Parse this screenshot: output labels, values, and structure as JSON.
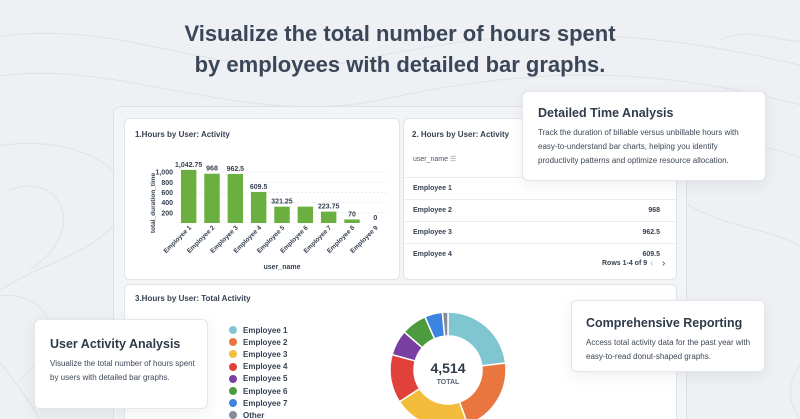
{
  "hero": {
    "line1": "Visualize the total number of hours spent",
    "line2": "by employees with detailed bar graphs."
  },
  "bar_card": {
    "title": "1.Hours by User: Activity"
  },
  "table_card": {
    "title": "2. Hours by User: Activity",
    "column_header": "user_name",
    "sort_icon": "sort-icon",
    "rows": [
      {
        "name": "Employee 1",
        "value": ""
      },
      {
        "name": "Employee 2",
        "value": "968"
      },
      {
        "name": "Employee 3",
        "value": "962.5"
      },
      {
        "name": "Employee 4",
        "value": "609.5"
      }
    ],
    "pager_text": "Rows 1-4 of 9",
    "prev_icon": "chevron-left-icon",
    "next_icon": "chevron-right-icon"
  },
  "donut_card": {
    "title": "3.Hours by User: Total Activity",
    "total_value": "4,514",
    "total_label": "TOTAL"
  },
  "callouts": {
    "detailed": {
      "title": "Detailed Time Analysis",
      "body": "Track the duration of billable versus unbillable hours with easy-to-understand bar charts, helping you identify productivity patterns and optimize resource allocation."
    },
    "user_activity": {
      "title": "User Activity Analysis",
      "body": "Visualize the total number of hours spent by users with detailed bar graphs."
    },
    "reporting": {
      "title": "Comprehensive Reporting",
      "body": "Access total activity data for the past year with easy-to-read donut-shaped graphs."
    }
  },
  "chart_data": [
    {
      "type": "bar",
      "title": "1.Hours by User: Activity",
      "xlabel": "user_name",
      "ylabel": "total_duration_time",
      "categories": [
        "Employee 1",
        "Employee 2",
        "Employee 3",
        "Employee 4",
        "Employee 5",
        "Employee 6",
        "Employee 7",
        "Employee 8",
        "Employee 9"
      ],
      "values": [
        1042.75,
        968,
        962.5,
        609.5,
        321.25,
        321.25,
        223.75,
        70,
        0
      ],
      "value_labels": [
        "1,042.75",
        "968",
        "962.5",
        "609.5",
        "321.25",
        "",
        "223.75",
        "70",
        "0"
      ],
      "yticks": [
        "1,000",
        "800",
        "600",
        "400",
        "200"
      ],
      "ylim": [
        0,
        1100
      ],
      "color": "#6aaf3f"
    },
    {
      "type": "pie",
      "title": "3.Hours by User: Total Activity",
      "labels": [
        "Employee 1",
        "Employee 2",
        "Employee 3",
        "Employee 4",
        "Employee 5",
        "Employee 6",
        "Employee 7",
        "Other"
      ],
      "values": [
        1042.75,
        968,
        962.5,
        609.5,
        321.25,
        321.25,
        223.75,
        70
      ],
      "colors": [
        "#7fc6d1",
        "#e9763f",
        "#f3bd3b",
        "#e0413b",
        "#7a3fa3",
        "#4e9b3f",
        "#3d84e0",
        "#858c98"
      ],
      "total": "4,514",
      "total_label": "TOTAL"
    }
  ]
}
